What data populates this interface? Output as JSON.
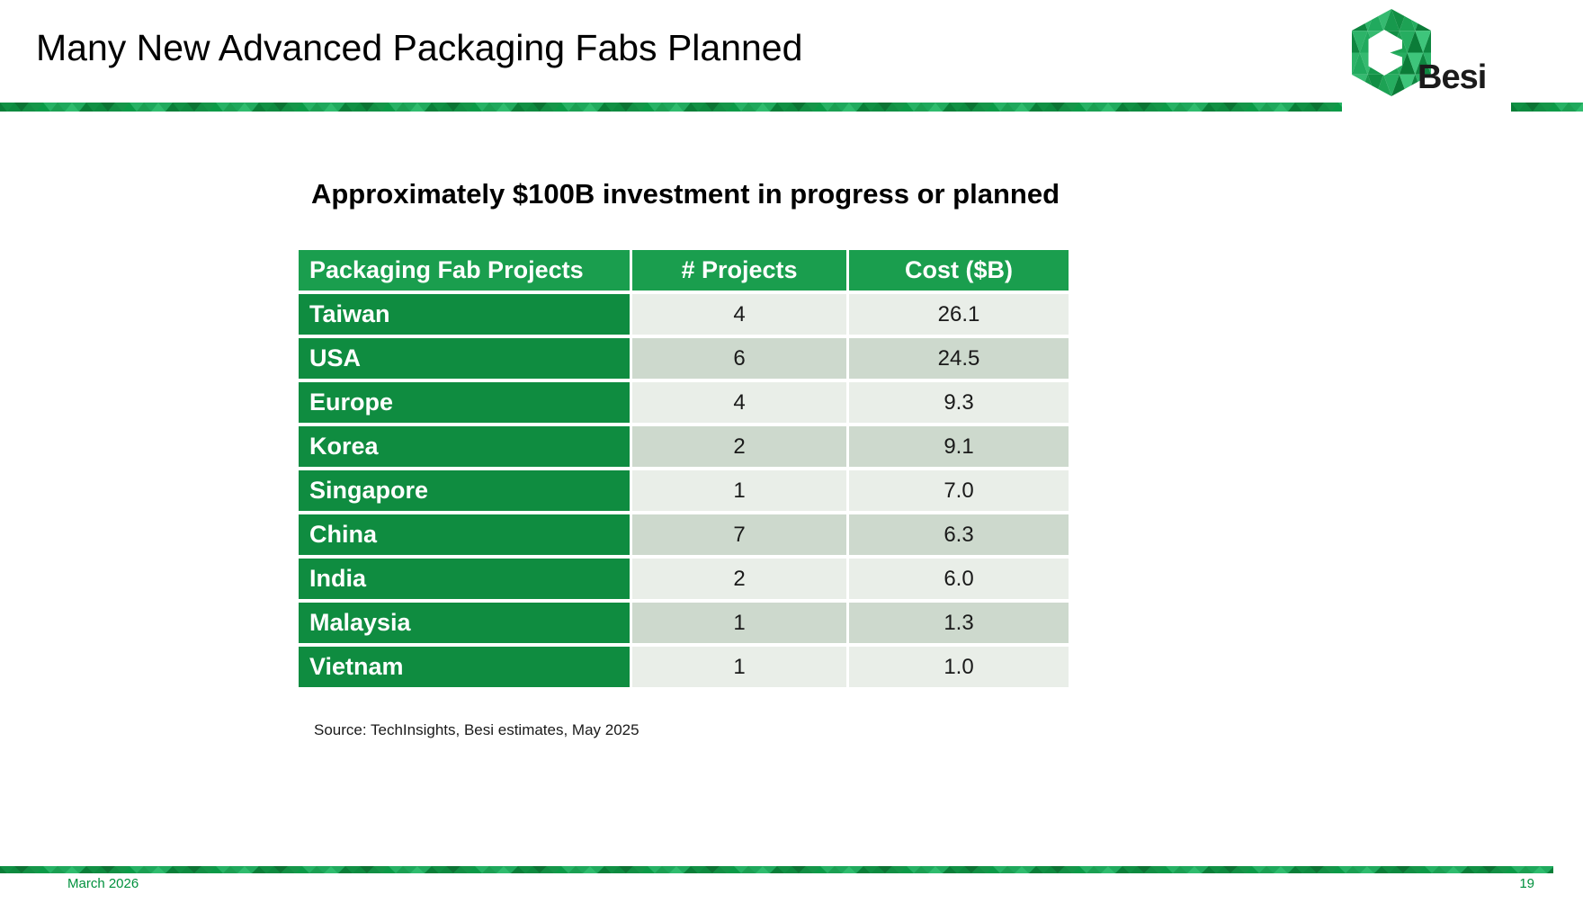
{
  "slide": {
    "title": "Many New Advanced Packaging Fabs Planned",
    "subtitle": "Approximately $100B investment in progress or planned",
    "source_note": "Source: TechInsights, Besi estimates, May 2025",
    "footer": {
      "date": "March 2026",
      "page_number": "19"
    },
    "logo": {
      "wordmark": "Besi",
      "icon": "besi-hexagon-logo"
    }
  },
  "table": {
    "columns": [
      "Packaging Fab Projects",
      "# Projects",
      "Cost ($B)"
    ],
    "rows": [
      {
        "region": "Taiwan",
        "projects": "4",
        "cost_billion": "26.1"
      },
      {
        "region": "USA",
        "projects": "6",
        "cost_billion": "24.5"
      },
      {
        "region": "Europe",
        "projects": "4",
        "cost_billion": "9.3"
      },
      {
        "region": "Korea",
        "projects": "2",
        "cost_billion": "9.1"
      },
      {
        "region": "Singapore",
        "projects": "1",
        "cost_billion": "7.0"
      },
      {
        "region": "China",
        "projects": "7",
        "cost_billion": "6.3"
      },
      {
        "region": "India",
        "projects": "2",
        "cost_billion": "6.0"
      },
      {
        "region": "Malaysia",
        "projects": "1",
        "cost_billion": "1.3"
      },
      {
        "region": "Vietnam",
        "projects": "1",
        "cost_billion": "1.0"
      }
    ]
  },
  "colors": {
    "table_header_green": "#1a9e4e",
    "row_label_green": "#0f8c40",
    "row_stripe_light": "#e9eee8",
    "row_stripe_dark": "#cdd9cd",
    "accent_bar_green": "#17a054",
    "footer_text_green": "#00913d"
  }
}
